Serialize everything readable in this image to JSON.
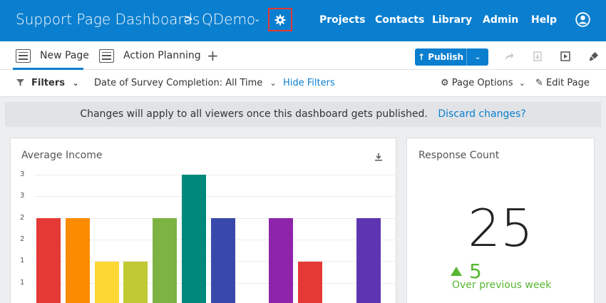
{
  "header": {
    "breadcrumb": "Support Page Dashboards",
    "separator": ">",
    "project": "QDemo",
    "nav": [
      "Projects",
      "Contacts",
      "Library",
      "Admin",
      "Help"
    ]
  },
  "tabs": [
    {
      "label": "New Page",
      "active": true
    },
    {
      "label": "Action Planning",
      "active": false
    }
  ],
  "toolbar": {
    "publish_label": "Publish"
  },
  "filters": {
    "filters_label": "Filters",
    "date_filter": "Date of Survey Completion: All Time",
    "hide_filters": "Hide Filters",
    "page_options": "Page Options",
    "edit_page": "Edit Page"
  },
  "banner": {
    "message": "Changes will apply to all viewers once this dashboard gets published.",
    "discard_link": "Discard changes?"
  },
  "widgets": {
    "avg_income": {
      "title": "Average Income"
    },
    "response_count": {
      "title": "Response Count",
      "value": "25",
      "delta": "5",
      "delta_label": "Over previous week"
    }
  },
  "chart_data": {
    "type": "bar",
    "title": "Average Income",
    "ytick_labels": [
      "3",
      "3",
      "2",
      "2",
      "1",
      "1"
    ],
    "values": [
      2,
      2,
      1,
      1,
      2,
      3,
      2,
      0,
      2,
      1,
      0,
      2
    ],
    "colors": [
      "#e53935",
      "#fb8c00",
      "#fdd835",
      "#c0ca33",
      "#7cb342",
      "#00897b",
      "#3949ab",
      "#ffffff",
      "#8e24aa",
      "#e53935",
      "#ffffff",
      "#5e35b1"
    ],
    "ylim": [
      0,
      3
    ]
  }
}
